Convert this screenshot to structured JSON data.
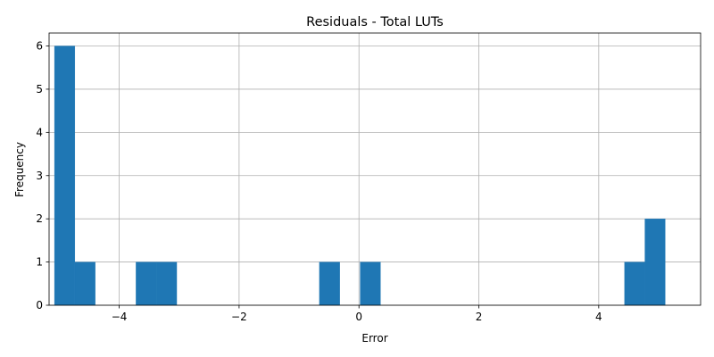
{
  "chart_data": {
    "type": "bar",
    "title": "Residuals - Total LUTs",
    "xlabel": "Error",
    "ylabel": "Frequency",
    "xlim": [
      -5.17,
      5.7
    ],
    "ylim": [
      0,
      6.3
    ],
    "grid": true,
    "bar_color": "#1f77b4",
    "x_ticks": [
      {
        "value": -4,
        "label": "−4"
      },
      {
        "value": -2,
        "label": "−2"
      },
      {
        "value": 0,
        "label": "0"
      },
      {
        "value": 2,
        "label": "2"
      },
      {
        "value": 4,
        "label": "4"
      }
    ],
    "y_ticks": [
      {
        "value": 0,
        "label": "0"
      },
      {
        "value": 1,
        "label": "1"
      },
      {
        "value": 2,
        "label": "2"
      },
      {
        "value": 3,
        "label": "3"
      },
      {
        "value": 4,
        "label": "4"
      },
      {
        "value": 5,
        "label": "5"
      },
      {
        "value": 6,
        "label": "6"
      }
    ],
    "bins": [
      {
        "x0": -5.08,
        "x1": -4.74,
        "count": 6
      },
      {
        "x0": -4.74,
        "x1": -4.4,
        "count": 1
      },
      {
        "x0": -3.72,
        "x1": -3.38,
        "count": 1
      },
      {
        "x0": -3.38,
        "x1": -3.04,
        "count": 1
      },
      {
        "x0": -0.66,
        "x1": -0.32,
        "count": 1
      },
      {
        "x0": 0.02,
        "x1": 0.36,
        "count": 1
      },
      {
        "x0": 4.43,
        "x1": 4.77,
        "count": 1
      },
      {
        "x0": 4.77,
        "x1": 5.11,
        "count": 2
      }
    ]
  }
}
